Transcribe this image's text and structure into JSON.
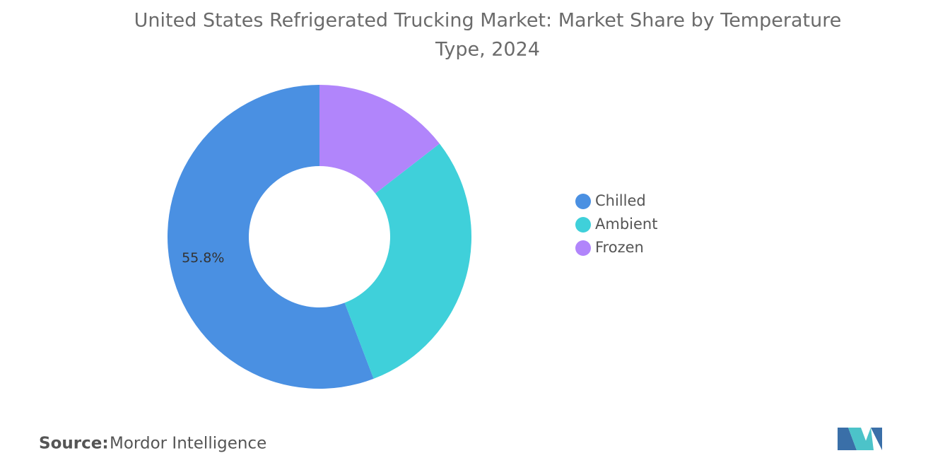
{
  "chart_data": {
    "type": "donut",
    "title": "United States Refrigerated Trucking Market: Market Share by Temperature Type, 2024",
    "categories": [
      "Chilled",
      "Ambient",
      "Frozen"
    ],
    "values": [
      55.8,
      29.7,
      14.5
    ],
    "value_labels": [
      "55.8%",
      null,
      null
    ],
    "colors": [
      "#4a90e2",
      "#3fd0da",
      "#b185fb"
    ],
    "legend": "right"
  },
  "footer": {
    "source_label": "Source:",
    "source": "Mordor Intelligence"
  }
}
